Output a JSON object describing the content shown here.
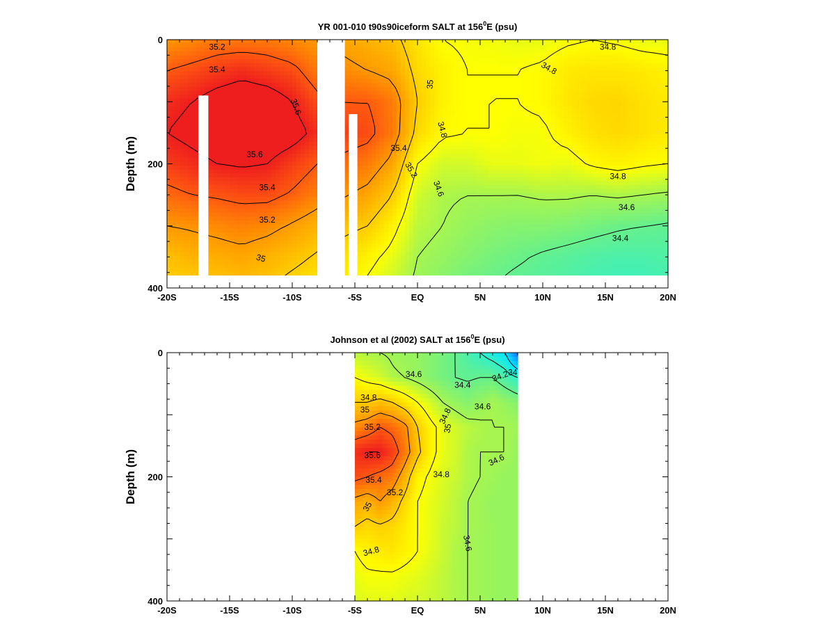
{
  "chart_data": [
    {
      "type": "heatmap",
      "panel": "top",
      "title": "YR 001-010 t90s90iceform SALT at 156",
      "title_superscript": "0",
      "title_suffix": "E (psu)",
      "ylabel": "Depth (m)",
      "xlabel": "",
      "xticks": [
        "-20S",
        "-15S",
        "-10S",
        "-5S",
        "EQ",
        "5N",
        "10N",
        "15N",
        "20N"
      ],
      "xlim": [
        -20,
        20
      ],
      "yticks": [
        "0",
        "200",
        "400"
      ],
      "ylim": [
        0,
        400
      ],
      "y_inverted": true,
      "colorscale": [
        {
          "value": 34.2,
          "color": "#33f0c8"
        },
        {
          "value": 34.4,
          "color": "#66f08c"
        },
        {
          "value": 34.6,
          "color": "#a6f550"
        },
        {
          "value": 34.8,
          "color": "#ffff00"
        },
        {
          "value": 35.0,
          "color": "#ffcc00"
        },
        {
          "value": 35.2,
          "color": "#ff9900"
        },
        {
          "value": 35.4,
          "color": "#ff5a10"
        },
        {
          "value": 35.6,
          "color": "#ee1e1e"
        }
      ],
      "data_max_depth": 380,
      "blank_columns": [
        [
          -17.5,
          -16.7
        ],
        [
          -8.0,
          -5.8
        ],
        [
          -5.5,
          -4.8
        ]
      ],
      "blank_columns_start_depth": [
        90,
        0,
        120
      ],
      "value_grid": {
        "x": [
          -20,
          -18,
          -16,
          -14,
          -12,
          -10,
          -8,
          -6,
          -4,
          -2,
          0,
          2,
          4,
          6,
          8,
          10,
          12,
          14,
          16,
          18,
          20
        ],
        "depth": [
          0,
          50,
          100,
          150,
          200,
          250,
          300,
          350,
          380
        ],
        "values": [
          [
            35.2,
            35.25,
            35.3,
            35.3,
            35.3,
            35.25,
            35.2,
            35.15,
            35.1,
            35.05,
            34.9,
            34.8,
            34.78,
            34.77,
            34.75,
            34.75,
            34.78,
            34.8,
            34.78,
            34.75,
            34.75
          ],
          [
            35.4,
            35.45,
            35.5,
            35.55,
            35.5,
            35.45,
            35.3,
            35.25,
            35.2,
            35.15,
            34.95,
            34.85,
            34.8,
            34.8,
            34.8,
            34.82,
            34.88,
            34.9,
            34.9,
            34.88,
            34.85
          ],
          [
            35.55,
            35.6,
            35.68,
            35.72,
            35.7,
            35.6,
            35.45,
            35.4,
            35.4,
            35.3,
            35.0,
            34.85,
            34.8,
            34.8,
            34.8,
            34.82,
            34.9,
            34.95,
            34.96,
            34.92,
            34.88
          ],
          [
            35.6,
            35.65,
            35.7,
            35.75,
            35.72,
            35.68,
            35.55,
            35.5,
            35.45,
            35.3,
            34.95,
            34.82,
            34.8,
            34.8,
            34.78,
            34.78,
            34.85,
            34.92,
            34.95,
            34.92,
            34.88
          ],
          [
            35.5,
            35.55,
            35.6,
            35.62,
            35.6,
            35.5,
            35.4,
            35.35,
            35.3,
            35.15,
            34.8,
            34.7,
            34.7,
            34.75,
            34.75,
            34.77,
            34.75,
            34.82,
            34.85,
            34.82,
            34.8
          ],
          [
            35.35,
            35.4,
            35.42,
            35.45,
            35.45,
            35.38,
            35.28,
            35.22,
            35.15,
            35.0,
            34.7,
            34.62,
            34.6,
            34.6,
            34.6,
            34.62,
            34.62,
            34.6,
            34.62,
            34.6,
            34.58
          ],
          [
            35.2,
            35.22,
            35.25,
            35.28,
            35.25,
            35.18,
            35.1,
            35.05,
            35.0,
            34.85,
            34.65,
            34.6,
            34.55,
            34.52,
            34.5,
            34.5,
            34.48,
            34.45,
            34.42,
            34.4,
            34.38
          ],
          [
            35.05,
            35.1,
            35.12,
            35.15,
            35.1,
            35.05,
            34.98,
            34.92,
            34.85,
            34.75,
            34.6,
            34.55,
            34.5,
            34.45,
            34.42,
            34.38,
            34.35,
            34.32,
            34.3,
            34.3,
            34.32
          ],
          [
            35.0,
            35.02,
            35.05,
            35.08,
            35.05,
            34.98,
            34.92,
            34.88,
            34.8,
            34.7,
            34.58,
            34.52,
            34.45,
            34.42,
            34.38,
            34.35,
            34.32,
            34.28,
            34.26,
            34.26,
            34.28
          ]
        ]
      },
      "contour_labels": [
        {
          "text": "35.2",
          "x": -16.0,
          "y": 12
        },
        {
          "text": "35.4",
          "x": -16.0,
          "y": 48
        },
        {
          "text": "35.6",
          "x": -9.7,
          "y": 108,
          "rotate": 70
        },
        {
          "text": "35.6",
          "x": -13.0,
          "y": 185
        },
        {
          "text": "35.4",
          "x": -12.0,
          "y": 238
        },
        {
          "text": "35.2",
          "x": -12.0,
          "y": 290
        },
        {
          "text": "35",
          "x": -12.5,
          "y": 352,
          "rotate": 15
        },
        {
          "text": "35",
          "x": 1.0,
          "y": 72,
          "rotate": -85
        },
        {
          "text": "34.8",
          "x": 2.0,
          "y": 145,
          "rotate": 75
        },
        {
          "text": "35.4",
          "x": -1.5,
          "y": 175
        },
        {
          "text": "35.2",
          "x": -0.5,
          "y": 210,
          "rotate": 60
        },
        {
          "text": "34.6",
          "x": 1.7,
          "y": 240,
          "rotate": 70
        },
        {
          "text": "34.8",
          "x": 10.5,
          "y": 46,
          "rotate": 30
        },
        {
          "text": "34.8",
          "x": 15.2,
          "y": 12
        },
        {
          "text": "34.8",
          "x": 16.0,
          "y": 220
        },
        {
          "text": "34.6",
          "x": 16.7,
          "y": 270
        },
        {
          "text": "34.4",
          "x": 16.2,
          "y": 320
        }
      ]
    },
    {
      "type": "heatmap",
      "panel": "bottom",
      "title": "Johnson et al (2002) SALT at 156",
      "title_superscript": "0",
      "title_suffix": "E (psu)",
      "ylabel": "Depth (m)",
      "xlabel": "",
      "xticks": [
        "-20S",
        "-15S",
        "-10S",
        "-5S",
        "EQ",
        "5N",
        "10N",
        "15N",
        "20N"
      ],
      "xlim": [
        -20,
        20
      ],
      "yticks": [
        "0",
        "200",
        "400"
      ],
      "ylim": [
        0,
        400
      ],
      "y_inverted": true,
      "data_x_range": [
        -5,
        8
      ],
      "data_max_depth": 400,
      "value_grid": {
        "x": [
          -5,
          -4,
          -3,
          -2,
          -1,
          0,
          1,
          2,
          3,
          4,
          5,
          6,
          7,
          8
        ],
        "depth": [
          0,
          40,
          80,
          120,
          160,
          200,
          240,
          280,
          320,
          360,
          400
        ],
        "values": [
          [
            34.65,
            34.62,
            34.6,
            34.58,
            34.55,
            34.55,
            34.5,
            34.45,
            34.4,
            34.3,
            34.2,
            34.1,
            34.0,
            33.6
          ],
          [
            34.8,
            34.75,
            34.7,
            34.62,
            34.6,
            34.55,
            34.5,
            34.45,
            34.4,
            34.38,
            34.4,
            34.4,
            34.3,
            34.2
          ],
          [
            35.0,
            35.0,
            35.05,
            35.0,
            34.9,
            34.8,
            34.7,
            34.6,
            34.55,
            34.5,
            34.55,
            34.6,
            34.55,
            34.5
          ],
          [
            35.25,
            35.3,
            35.4,
            35.35,
            35.25,
            35.0,
            34.85,
            34.75,
            34.7,
            34.65,
            34.62,
            34.6,
            34.6,
            34.58
          ],
          [
            35.55,
            35.6,
            35.6,
            35.5,
            35.3,
            35.05,
            34.85,
            34.75,
            34.7,
            34.62,
            34.6,
            34.6,
            34.6,
            34.55
          ],
          [
            35.45,
            35.4,
            35.35,
            35.3,
            35.1,
            34.85,
            34.78,
            34.72,
            34.68,
            34.62,
            34.6,
            34.58,
            34.55,
            34.55
          ],
          [
            35.15,
            35.1,
            35.2,
            35.1,
            34.95,
            34.8,
            34.75,
            34.7,
            34.65,
            34.6,
            34.58,
            34.55,
            34.55,
            34.55
          ],
          [
            35.0,
            34.95,
            34.98,
            34.95,
            34.88,
            34.8,
            34.75,
            34.68,
            34.65,
            34.6,
            34.58,
            34.56,
            34.55,
            34.55
          ],
          [
            34.8,
            34.85,
            34.88,
            34.9,
            34.85,
            34.8,
            34.74,
            34.68,
            34.62,
            34.6,
            34.58,
            34.56,
            34.55,
            34.55
          ],
          [
            34.75,
            34.78,
            34.78,
            34.78,
            34.76,
            34.74,
            34.7,
            34.66,
            34.62,
            34.6,
            34.58,
            34.56,
            34.55,
            34.55
          ],
          [
            34.72,
            34.74,
            34.74,
            34.74,
            34.72,
            34.7,
            34.68,
            34.65,
            34.62,
            34.6,
            34.58,
            34.56,
            34.55,
            34.55
          ]
        ]
      },
      "contour_labels": [
        {
          "text": "34.6",
          "x": -0.3,
          "y": 35
        },
        {
          "text": "34.4",
          "x": 3.6,
          "y": 52
        },
        {
          "text": "34.2",
          "x": 6.6,
          "y": 38,
          "rotate": -20
        },
        {
          "text": "34",
          "x": 7.6,
          "y": 32
        },
        {
          "text": "34.8",
          "x": -3.9,
          "y": 72
        },
        {
          "text": "35",
          "x": -4.2,
          "y": 92
        },
        {
          "text": "34.6",
          "x": 5.2,
          "y": 87
        },
        {
          "text": "34.8",
          "x": 2.2,
          "y": 102,
          "rotate": -65
        },
        {
          "text": "35",
          "x": 2.4,
          "y": 122,
          "rotate": -80
        },
        {
          "text": "35.2",
          "x": -3.6,
          "y": 120
        },
        {
          "text": "35.6",
          "x": -3.6,
          "y": 165
        },
        {
          "text": "34.6",
          "x": 6.3,
          "y": 173,
          "rotate": -25
        },
        {
          "text": "34.8",
          "x": 1.9,
          "y": 196
        },
        {
          "text": "35.4",
          "x": -3.5,
          "y": 205
        },
        {
          "text": "35.2",
          "x": -1.8,
          "y": 225
        },
        {
          "text": "35",
          "x": -4.0,
          "y": 248,
          "rotate": -60
        },
        {
          "text": "34.6",
          "x": 4.0,
          "y": 307,
          "rotate": 80
        },
        {
          "text": "34.8",
          "x": -3.7,
          "y": 320,
          "rotate": -15
        }
      ]
    }
  ]
}
